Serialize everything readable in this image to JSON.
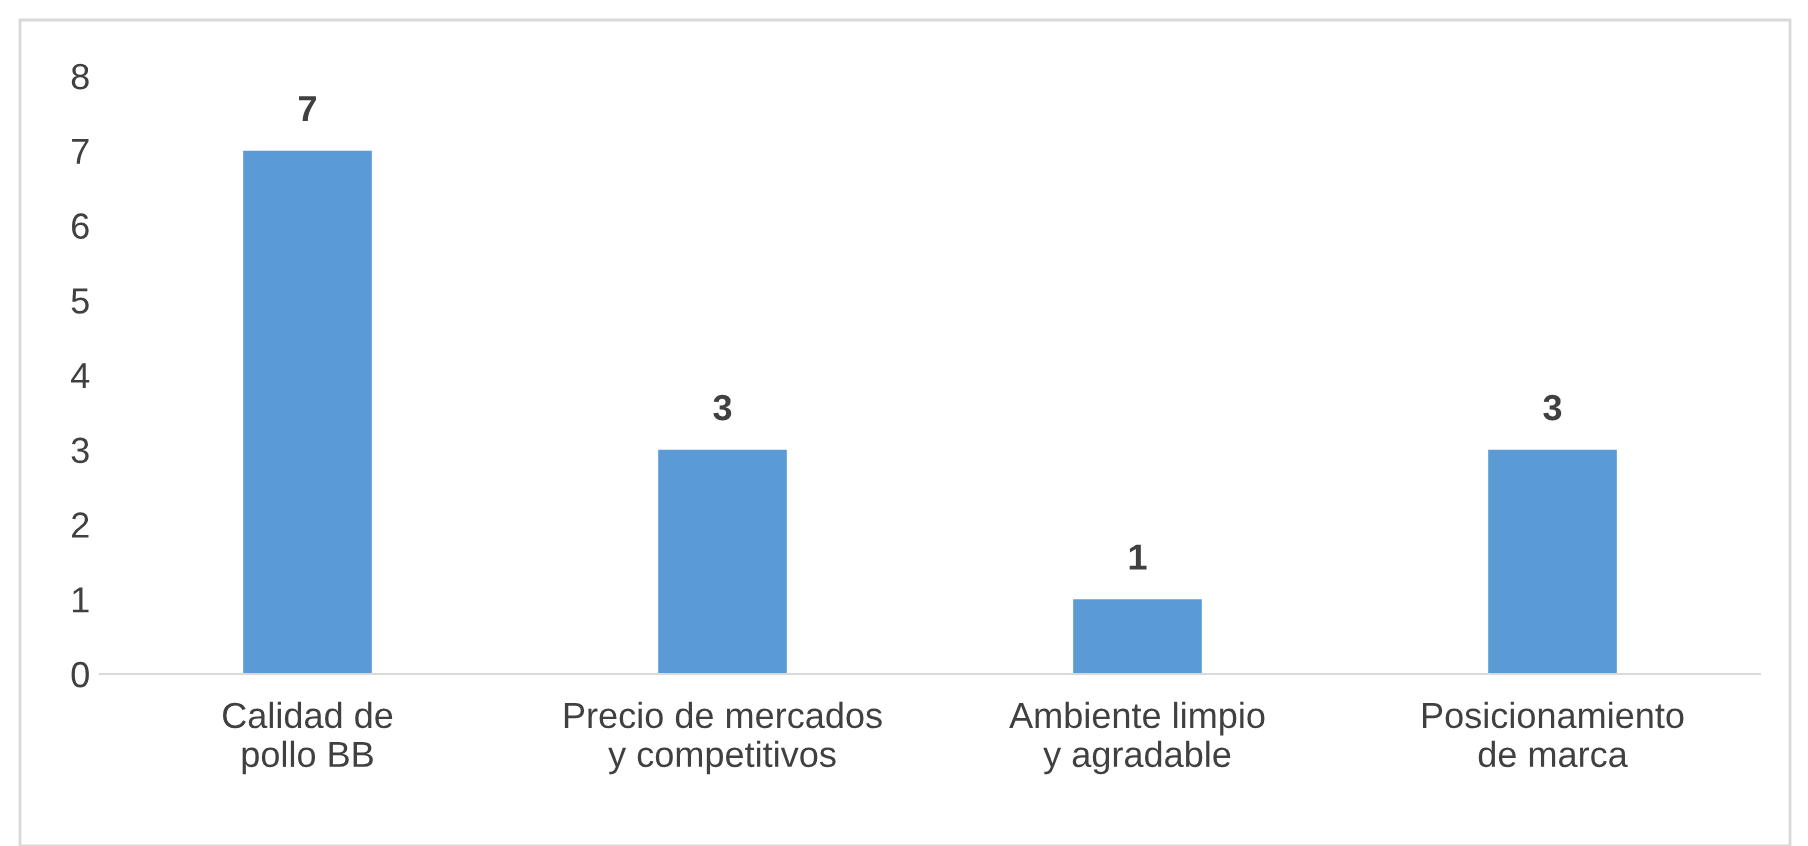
{
  "chart_data": {
    "type": "bar",
    "categories": [
      "Calidad de pollo BB",
      "Precio de mercados y competitivos",
      "Ambiente limpio y agradable",
      "Posicionamiento de marca"
    ],
    "values": [
      7,
      3,
      1,
      3
    ],
    "color": "#5b9bd5",
    "ylim": [
      0,
      8
    ],
    "yticks": [
      0,
      1,
      2,
      3,
      4,
      5,
      6,
      7,
      8
    ],
    "grid": false,
    "data_labels": true
  }
}
